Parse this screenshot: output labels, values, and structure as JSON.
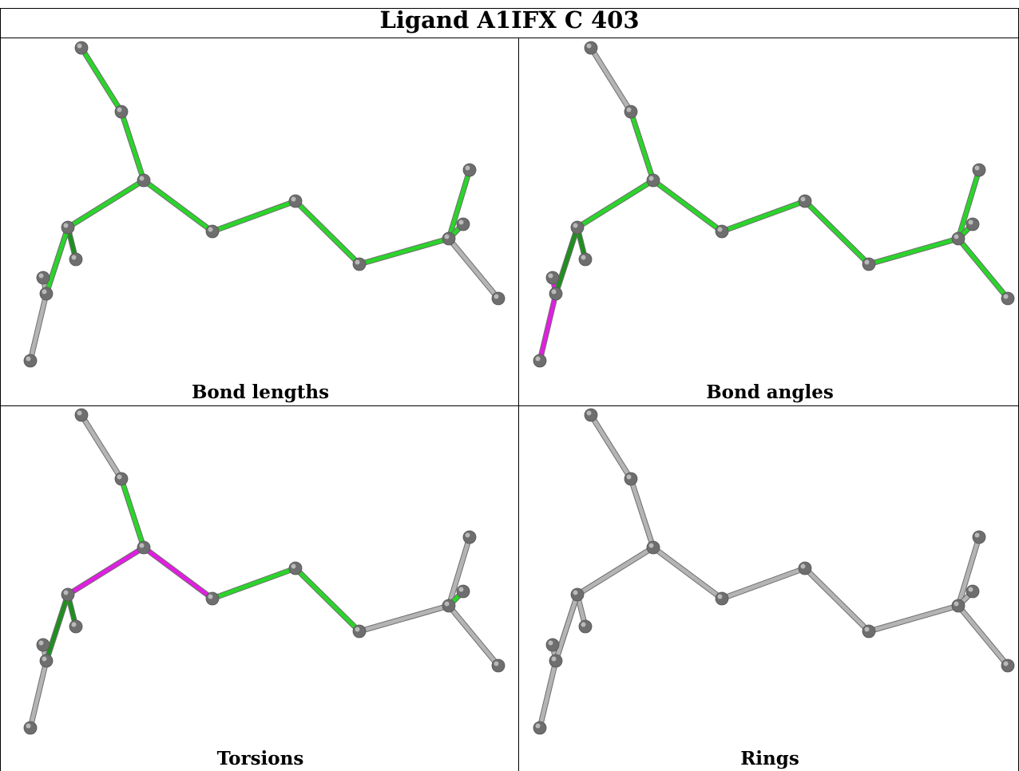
{
  "title": "Ligand A1IFX C 403",
  "colors": {
    "green": "#2bd42b",
    "dark_green": "#1f8f1f",
    "magenta": "#e01fe0",
    "grey_bond": "#b4b4b4",
    "atom": "#6e6e6e",
    "atom_highlight": "#b9b9b9"
  },
  "panels": [
    {
      "label": "Bond lengths",
      "bond_colors": {
        "b0": "green",
        "b1": "green",
        "b2": "green",
        "b3": "green",
        "b4": "green",
        "b5": "green",
        "b6": "green",
        "b7": "green",
        "b8": "grey",
        "b9": "grey",
        "b10": "dark_green",
        "b11": "green",
        "b12": "grey",
        "b13": "grey",
        "b14": "green",
        "b15": "green"
      }
    },
    {
      "label": "Bond angles",
      "bond_colors": {
        "b0": "grey",
        "b1": "green",
        "b2": "green",
        "b3": "green",
        "b4": "green",
        "b5": "green",
        "b6": "green",
        "b7": "green",
        "b8": "green",
        "b9": "green",
        "b10": "dark_green",
        "b11": "dark_green",
        "b12": "magenta",
        "b13": "magenta",
        "b14": "green",
        "b15": "dark_green"
      }
    },
    {
      "label": "Torsions",
      "bond_colors": {
        "b0": "grey",
        "b1": "green",
        "b2": "magenta",
        "b3": "magenta",
        "b4": "green",
        "b5": "green",
        "b6": "grey",
        "b7": "grey",
        "b8": "grey",
        "b9": "grey",
        "b10": "dark_green",
        "b11": "dark_green",
        "b12": "grey",
        "b13": "grey",
        "b14": "green",
        "b15": "dark_green"
      }
    },
    {
      "label": "Rings",
      "bond_colors": {
        "b0": "grey",
        "b1": "grey",
        "b2": "grey",
        "b3": "grey",
        "b4": "grey",
        "b5": "grey",
        "b6": "grey",
        "b7": "grey",
        "b8": "grey",
        "b9": "grey",
        "b10": "grey",
        "b11": "grey",
        "b12": "grey",
        "b13": "grey",
        "b14": "grey",
        "b15": "grey"
      }
    }
  ]
}
